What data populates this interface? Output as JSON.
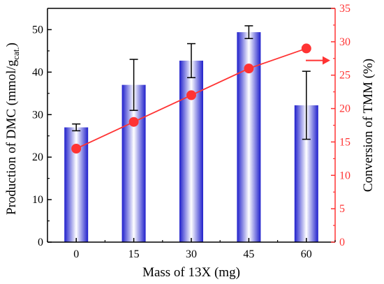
{
  "chart_data": {
    "type": "bar",
    "categories": [
      "0",
      "15",
      "30",
      "45",
      "60"
    ],
    "xlabel": "Mass of 13X (mg)",
    "ylabel_left": {
      "prefix": "Production of DMC",
      "unit_open": "(mmol/g",
      "unit_sub": "cat.",
      "unit_close": ")"
    },
    "ylabel_right": "Conversion of TMM (%)",
    "ylim_left": [
      0,
      55
    ],
    "ylim_right": [
      0,
      35
    ],
    "yticks_left": [
      "0",
      "10",
      "20",
      "30",
      "40",
      "50"
    ],
    "yticks_right": [
      "0",
      "5",
      "10",
      "15",
      "20",
      "25",
      "30",
      "35"
    ],
    "series": [
      {
        "axis": "left",
        "kind": "bar",
        "values": [
          27,
          37,
          42.7,
          49.4,
          32.2
        ],
        "error": [
          0.8,
          6,
          4,
          1.5,
          8
        ]
      },
      {
        "axis": "right",
        "kind": "line",
        "values": [
          14,
          18,
          22,
          26,
          29
        ]
      }
    ],
    "right_axis_arrow": true,
    "colors": {
      "bar_edge": "#1f1fcc",
      "bar_center": "#ffffff",
      "line": "#ff3333",
      "right_axis": "#ff3333",
      "left_axis": "#000000"
    }
  }
}
